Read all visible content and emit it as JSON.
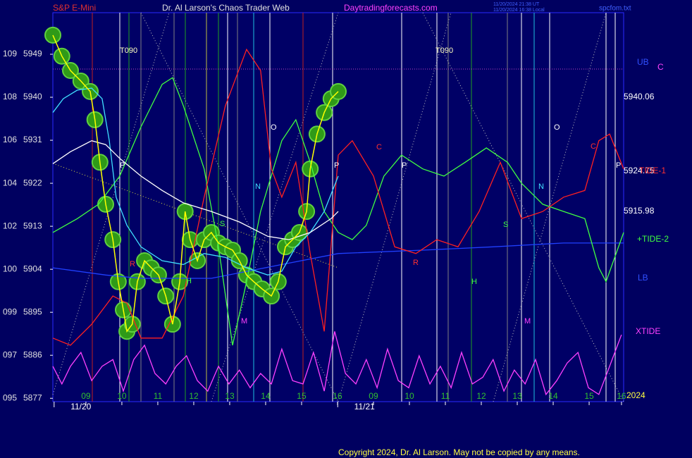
{
  "chart_data": {
    "type": "line",
    "title": "S&P E-Mini",
    "subtitle": "Dr. Al Larson's Chaos Trader Web",
    "source": "Daytradingforecasts.com",
    "timestamps": [
      "11/20/2024 21:38 UT",
      "11/20/2024 16:38 Local"
    ],
    "file": "spcfom.txt",
    "copyright": "Copyright 2024, Dr. Al Larson. May not be copied by any means.",
    "xlim": [
      -0.92,
      14.96
    ],
    "xticks": [
      {
        "value": 0,
        "label": "09"
      },
      {
        "value": 1,
        "label": "10"
      },
      {
        "value": 2,
        "label": "11"
      },
      {
        "value": 3,
        "label": "12"
      },
      {
        "value": 4,
        "label": "13"
      },
      {
        "value": 5,
        "label": "14"
      },
      {
        "value": 6,
        "label": "15"
      },
      {
        "value": 7,
        "label": "16"
      },
      {
        "value": 8,
        "label": "09"
      },
      {
        "value": 9,
        "label": "10"
      },
      {
        "value": 10,
        "label": "11"
      },
      {
        "value": 11,
        "label": "12"
      },
      {
        "value": 12,
        "label": "13"
      },
      {
        "value": 13,
        "label": "14"
      },
      {
        "value": 14,
        "label": "15"
      },
      {
        "value": 14.9,
        "label": "16"
      }
    ],
    "dates": [
      {
        "value": -0.14,
        "label": "11/20"
      },
      {
        "value": 7.75,
        "label": "11/21"
      }
    ],
    "ylim": [
      5876.3,
      5957.7
    ],
    "yticks": [
      5877,
      5886,
      5895,
      5904,
      5913,
      5922,
      5931,
      5940,
      5949
    ],
    "ytick_prefixes": [
      "095",
      "097",
      "099",
      "100",
      "102",
      "104",
      "106",
      "108",
      "109"
    ],
    "hlines": [
      {
        "value": 5945.9,
        "color": "#c040c0"
      }
    ],
    "annotations": [
      "T090",
      "T090",
      "P",
      "P",
      "P",
      "P",
      "O",
      "O",
      "N",
      "N",
      "C",
      "C",
      "R",
      "R",
      "H",
      "H",
      "S",
      "S",
      "M",
      "M",
      "UB",
      "C",
      "5940.06",
      "5924.75",
      "TIDE-1",
      "5915.98",
      "+TIDE-2",
      "LB",
      "XTIDE",
      "2024"
    ],
    "series": [
      {
        "color": "#ffff00",
        "bubbles": true,
        "x": [
          -0.92,
          -0.67,
          -0.43,
          -0.14,
          0.12,
          0.25,
          0.39,
          0.55,
          0.75,
          0.9,
          1.04,
          1.14,
          1.29,
          1.43,
          1.63,
          1.82,
          2.02,
          2.22,
          2.41,
          2.61,
          2.76,
          2.9,
          3.1,
          3.29,
          3.49,
          3.69,
          3.88,
          4.08,
          4.27,
          4.47,
          4.67,
          4.9,
          5.16,
          5.35,
          5.55,
          5.75,
          5.94,
          6.14,
          6.24,
          6.43,
          6.63,
          6.82,
          7.02
        ],
        "values": [
          5953.0,
          5948.6,
          5945.6,
          5943.4,
          5941.2,
          5935.3,
          5926.4,
          5917.6,
          5910.2,
          5901.4,
          5895.5,
          5891.0,
          5892.5,
          5901.4,
          5905.8,
          5904.3,
          5902.8,
          5898.4,
          5892.5,
          5901.4,
          5916.1,
          5910.2,
          5905.8,
          5910.2,
          5911.7,
          5909.5,
          5908.7,
          5908.0,
          5905.8,
          5902.8,
          5901.4,
          5899.9,
          5898.4,
          5901.4,
          5908.7,
          5910.2,
          5911.7,
          5916.1,
          5925.0,
          5932.3,
          5936.8,
          5939.7,
          5941.2
        ]
      },
      {
        "color": "#ffffff",
        "x": [
          -0.92,
          -0.43,
          0.16,
          0.55,
          0.94,
          1.53,
          2.12,
          2.71,
          3.49,
          4.27,
          5.06,
          5.65,
          6.24,
          6.82,
          7.02
        ],
        "values": [
          5926.1,
          5928.6,
          5930.9,
          5930.1,
          5927.2,
          5923.5,
          5920.5,
          5917.9,
          5916.1,
          5913.9,
          5910.9,
          5910.2,
          5911.7,
          5914.6,
          5916.1
        ]
      },
      {
        "color": "#40e0ff",
        "x": [
          -0.92,
          -0.63,
          -0.24,
          0.16,
          0.45,
          0.65,
          0.84,
          1.14,
          1.53,
          2.12,
          2.71,
          3.29,
          3.88,
          4.47,
          5.06,
          5.45,
          5.84,
          6.24,
          6.63,
          7.02
        ],
        "values": [
          5936.8,
          5939.7,
          5941.5,
          5941.9,
          5939.7,
          5930.9,
          5919.1,
          5913.2,
          5908.7,
          5905.8,
          5905.0,
          5907.3,
          5906.5,
          5904.3,
          5902.8,
          5903.6,
          5908.7,
          5911.7,
          5916.1,
          5923.5
        ]
      },
      {
        "color": "#ff2020",
        "x": [
          -0.92,
          -0.43,
          0.16,
          0.75,
          1.14,
          1.53,
          2.12,
          2.71,
          3.29,
          3.88,
          4.47,
          4.86,
          5.16,
          5.45,
          5.84,
          6.24,
          6.63,
          7.02,
          7.41,
          8.0,
          8.59,
          9.18,
          9.76,
          10.35,
          10.94,
          11.53,
          12.12,
          12.71,
          13.29,
          13.88,
          14.27,
          14.57,
          14.96
        ],
        "values": [
          5889.6,
          5888.1,
          5892.5,
          5898.4,
          5896.9,
          5889.6,
          5889.6,
          5898.4,
          5919.1,
          5938.2,
          5950.0,
          5945.6,
          5925.0,
          5919.1,
          5926.4,
          5907.3,
          5891.0,
          5927.9,
          5930.9,
          5923.5,
          5908.7,
          5907.3,
          5910.2,
          5908.7,
          5916.1,
          5926.4,
          5914.6,
          5916.1,
          5919.1,
          5920.5,
          5930.9,
          5932.3,
          5925.0
        ]
      },
      {
        "color": "#40ff40",
        "x": [
          -0.92,
          -0.24,
          0.35,
          0.94,
          1.53,
          2.12,
          2.41,
          2.71,
          3.29,
          3.69,
          4.08,
          4.47,
          4.86,
          5.45,
          5.84,
          6.24,
          6.63,
          7.02,
          7.41,
          7.8,
          8.29,
          8.78,
          9.37,
          9.96,
          10.55,
          11.14,
          11.73,
          12.12,
          12.71,
          13.29,
          13.88,
          14.27,
          14.47,
          14.96
        ],
        "values": [
          5911.7,
          5914.6,
          5917.6,
          5923.5,
          5933.8,
          5942.7,
          5944.1,
          5938.2,
          5925.0,
          5908.7,
          5888.1,
          5901.4,
          5916.1,
          5930.9,
          5935.3,
          5926.4,
          5916.1,
          5911.7,
          5910.2,
          5913.2,
          5923.5,
          5927.9,
          5925.0,
          5923.5,
          5926.4,
          5929.4,
          5926.4,
          5922.0,
          5917.6,
          5916.1,
          5914.6,
          5904.3,
          5901.4,
          5911.7
        ]
      },
      {
        "color": "#ff40ff",
        "x": [
          -0.92,
          -0.67,
          -0.43,
          -0.14,
          0.16,
          0.45,
          0.75,
          1.04,
          1.33,
          1.63,
          1.92,
          2.22,
          2.51,
          2.8,
          3.1,
          3.39,
          3.69,
          3.98,
          4.27,
          4.57,
          4.86,
          5.16,
          5.45,
          5.75,
          6.04,
          6.33,
          6.63,
          6.92,
          7.22,
          7.51,
          7.8,
          8.1,
          8.39,
          8.69,
          8.98,
          9.27,
          9.57,
          9.86,
          10.16,
          10.45,
          10.75,
          11.04,
          11.33,
          11.63,
          11.92,
          12.22,
          12.51,
          12.8,
          13.1,
          13.39,
          13.69,
          13.98,
          14.27,
          14.57,
          14.9
        ],
        "values": [
          5883.7,
          5880.0,
          5883.7,
          5886.6,
          5880.7,
          5883.7,
          5885.1,
          5878.5,
          5885.1,
          5888.1,
          5882.2,
          5880.0,
          5883.7,
          5885.9,
          5880.7,
          5878.5,
          5883.7,
          5880.0,
          5882.9,
          5879.2,
          5882.2,
          5880.0,
          5887.3,
          5880.7,
          5880.0,
          5886.6,
          5878.5,
          5891.0,
          5882.2,
          5880.0,
          5885.1,
          5879.2,
          5887.3,
          5880.7,
          5879.2,
          5885.9,
          5880.0,
          5883.7,
          5879.2,
          5886.6,
          5880.0,
          5881.4,
          5885.1,
          5878.5,
          5882.9,
          5880.0,
          5885.1,
          5877.8,
          5880.7,
          5884.4,
          5886.6,
          5879.2,
          5877.8,
          5883.7,
          5890.3
        ]
      },
      {
        "color": "#2040ff",
        "x": [
          -0.92,
          0.55,
          1.53,
          3.49,
          5.45,
          7.02,
          9.37,
          11.33,
          13.29,
          14.96
        ],
        "values": [
          5904.3,
          5902.8,
          5902.1,
          5902.1,
          5905.0,
          5907.3,
          5908.0,
          5908.7,
          5909.5,
          5909.5
        ]
      }
    ]
  }
}
